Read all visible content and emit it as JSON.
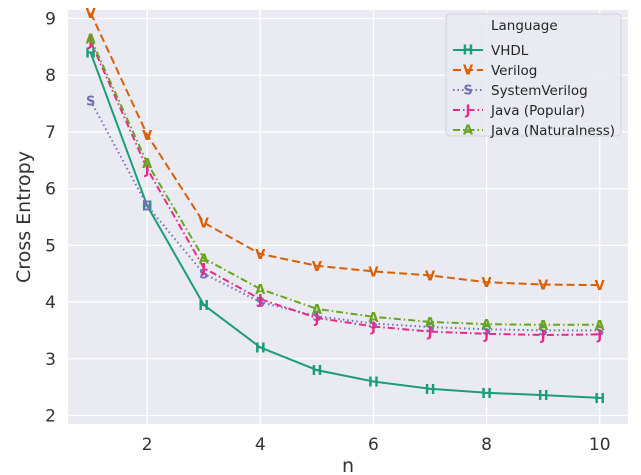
{
  "chart_data": {
    "type": "line",
    "xlabel": "n",
    "ylabel": "Cross Entropy",
    "xlim": [
      0.6,
      10.5
    ],
    "ylim": [
      1.85,
      9.15
    ],
    "x_ticks": [
      "2",
      "4",
      "6",
      "8",
      "10"
    ],
    "y_ticks": [
      "2",
      "3",
      "4",
      "5",
      "6",
      "7",
      "8",
      "9"
    ],
    "grid": true,
    "background": "#eaeaf2",
    "legend_title": "Language",
    "legend_position": "top-right",
    "x": [
      1,
      2,
      3,
      4,
      5,
      6,
      7,
      8,
      9,
      10
    ],
    "series": [
      {
        "name": "VHDL",
        "marker": "H",
        "color": "#1b9e77",
        "dash": "solid",
        "values": [
          8.4,
          5.7,
          3.95,
          3.2,
          2.8,
          2.6,
          2.47,
          2.4,
          2.36,
          2.31
        ]
      },
      {
        "name": "Verilog",
        "marker": "V",
        "color": "#d95f02",
        "dash": "dashed",
        "values": [
          9.1,
          6.95,
          5.4,
          4.85,
          4.64,
          4.54,
          4.47,
          4.35,
          4.31,
          4.3
        ]
      },
      {
        "name": "SystemVerilog",
        "marker": "S",
        "color": "#7570b3",
        "dash": "dotted",
        "values": [
          7.55,
          5.7,
          4.5,
          4.0,
          3.75,
          3.62,
          3.56,
          3.52,
          3.5,
          3.5
        ]
      },
      {
        "name": "Java (Popular)",
        "marker": "J",
        "color": "#e7298a",
        "dash": "dashdot",
        "values": [
          8.6,
          6.35,
          4.6,
          4.05,
          3.72,
          3.57,
          3.48,
          3.44,
          3.42,
          3.43
        ]
      },
      {
        "name": "Java (Naturalness)",
        "marker": "A",
        "color": "#66a61e",
        "dash": "dashdot",
        "values": [
          8.65,
          6.45,
          4.77,
          4.23,
          3.88,
          3.74,
          3.65,
          3.61,
          3.6,
          3.6
        ]
      }
    ]
  }
}
